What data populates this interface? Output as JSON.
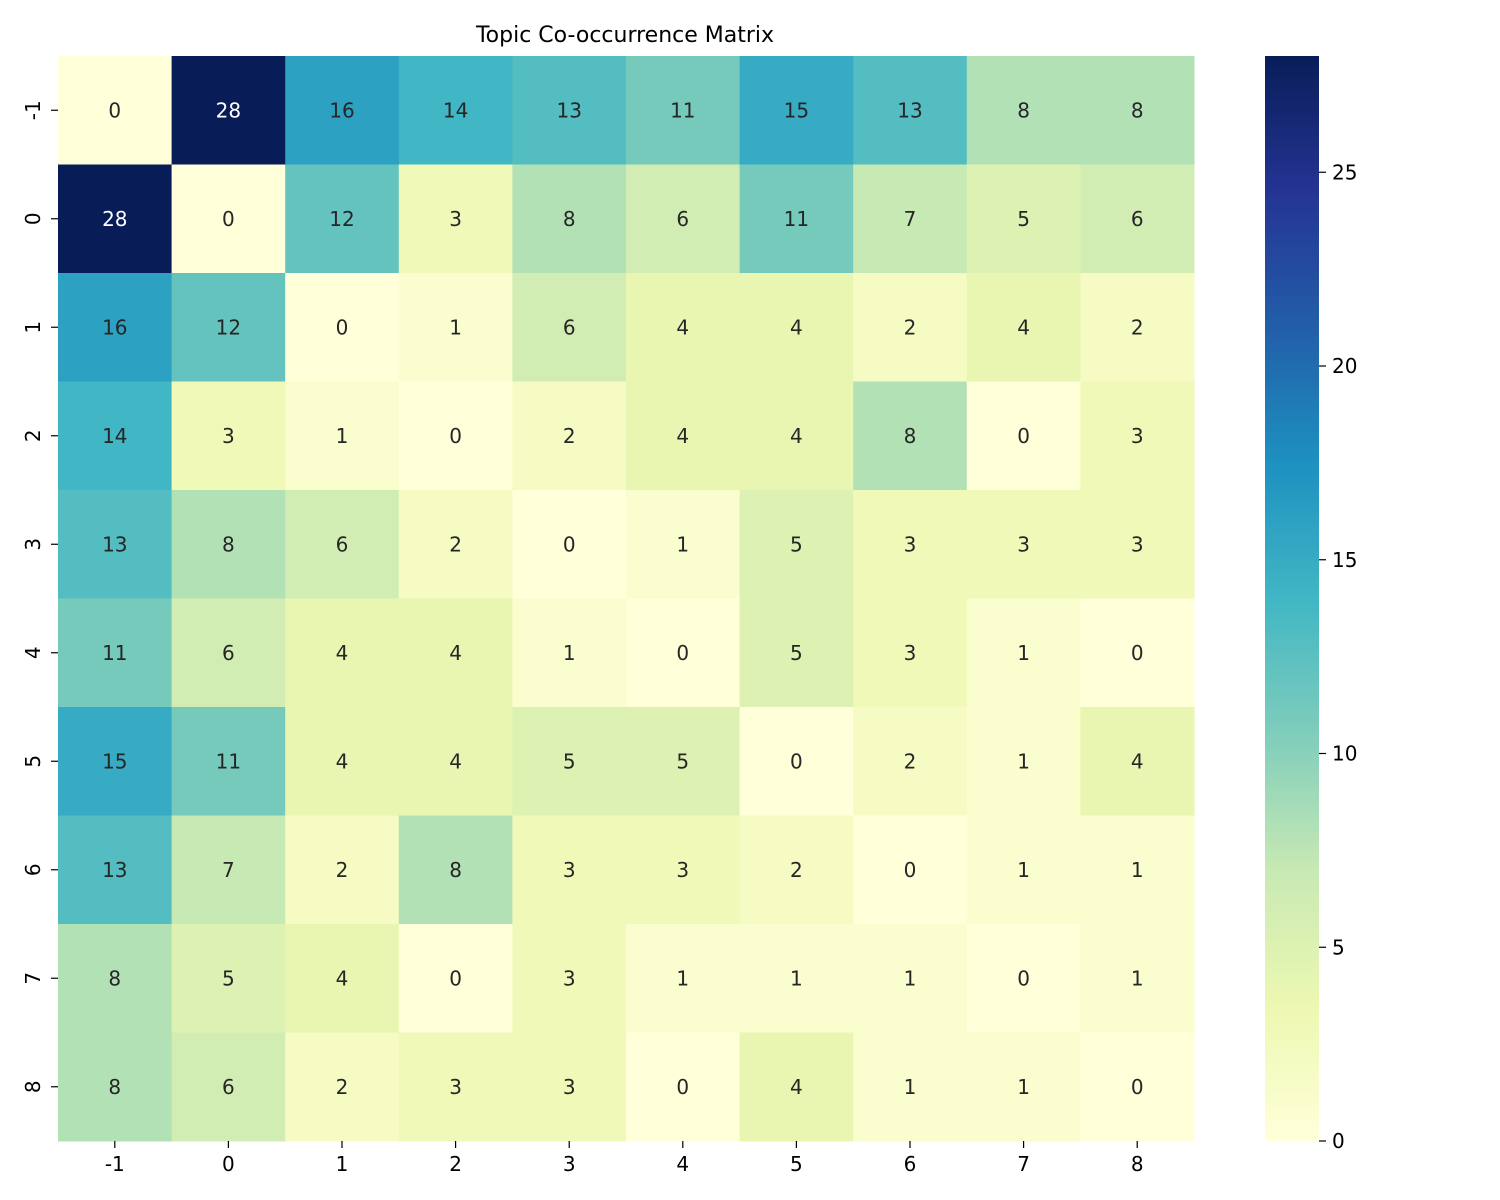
{
  "chart_data": {
    "type": "heatmap",
    "title": "Topic Co-occurrence Matrix",
    "xlabel": "",
    "ylabel": "",
    "x_categories": [
      "-1",
      "0",
      "1",
      "2",
      "3",
      "4",
      "5",
      "6",
      "7",
      "8"
    ],
    "y_categories": [
      "-1",
      "0",
      "1",
      "2",
      "3",
      "4",
      "5",
      "6",
      "7",
      "8"
    ],
    "values": [
      [
        0,
        28,
        16,
        14,
        13,
        11,
        15,
        13,
        8,
        8
      ],
      [
        28,
        0,
        12,
        3,
        8,
        6,
        11,
        7,
        5,
        6
      ],
      [
        16,
        12,
        0,
        1,
        6,
        4,
        4,
        2,
        4,
        2
      ],
      [
        14,
        3,
        1,
        0,
        2,
        4,
        4,
        8,
        0,
        3
      ],
      [
        13,
        8,
        6,
        2,
        0,
        1,
        5,
        3,
        3,
        3
      ],
      [
        11,
        6,
        4,
        4,
        1,
        0,
        5,
        3,
        1,
        0
      ],
      [
        15,
        11,
        4,
        4,
        5,
        5,
        0,
        2,
        1,
        4
      ],
      [
        13,
        7,
        2,
        8,
        3,
        3,
        2,
        0,
        1,
        1
      ],
      [
        8,
        5,
        4,
        0,
        3,
        1,
        1,
        1,
        0,
        1
      ],
      [
        8,
        6,
        2,
        3,
        3,
        0,
        4,
        1,
        1,
        0
      ]
    ],
    "colormap": "YlGnBu",
    "vmin": 0,
    "vmax": 28,
    "colorbar_ticks": [
      0,
      5,
      10,
      15,
      20,
      25
    ],
    "annotated": true
  }
}
